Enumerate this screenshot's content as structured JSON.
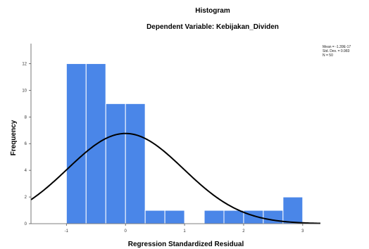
{
  "chart_data": {
    "type": "bar",
    "title": "Histogram",
    "subtitle": "Dependent Variable: Kebijakan_Dividen",
    "xlabel": "Regression Standardized Residual",
    "ylabel": "Frequency",
    "xlim": [
      -1.6,
      3.3
    ],
    "ylim": [
      0,
      13.5
    ],
    "x_ticks": [
      -1,
      0,
      1,
      2,
      3
    ],
    "y_ticks": [
      0,
      2,
      4,
      6,
      8,
      10,
      12
    ],
    "bin_width": 0.3333,
    "bins": [
      {
        "start": -1.0,
        "value": 12
      },
      {
        "start": -0.6667,
        "value": 12
      },
      {
        "start": -0.3333,
        "value": 9
      },
      {
        "start": 0.0,
        "value": 9
      },
      {
        "start": 0.3333,
        "value": 1
      },
      {
        "start": 0.6667,
        "value": 1
      },
      {
        "start": 1.0,
        "value": 0
      },
      {
        "start": 1.3333,
        "value": 1
      },
      {
        "start": 1.6667,
        "value": 1
      },
      {
        "start": 2.0,
        "value": 1
      },
      {
        "start": 2.3333,
        "value": 1
      },
      {
        "start": 2.6667,
        "value": 2
      }
    ],
    "normal_curve": {
      "mean": 0.0,
      "std": 0.983,
      "n": 50
    },
    "grid": false,
    "bar_color": "#4a86e8",
    "bar_edge_color": "#ffffff",
    "curve_color": "#000000"
  },
  "stats": {
    "mean_label": "Mean = -1.39E-17",
    "std_label": "Std. Dev. = 0.983",
    "n_label": "N = 50"
  }
}
